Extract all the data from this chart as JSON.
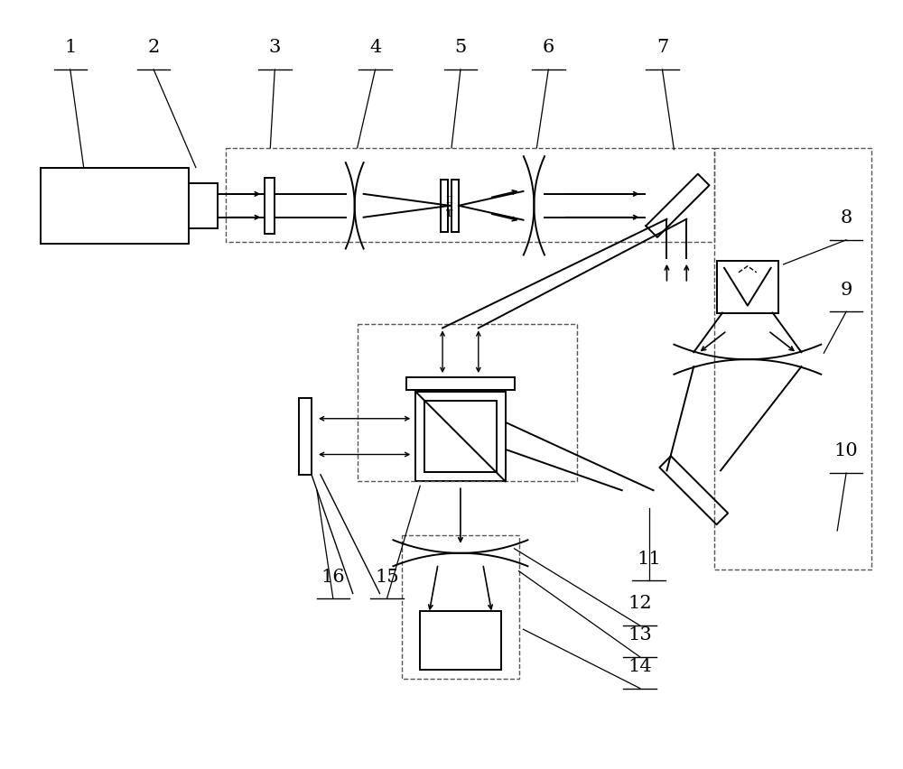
{
  "bg_color": "#ffffff",
  "line_color": "#000000",
  "figsize": [
    10.0,
    8.53
  ],
  "dpi": 100
}
